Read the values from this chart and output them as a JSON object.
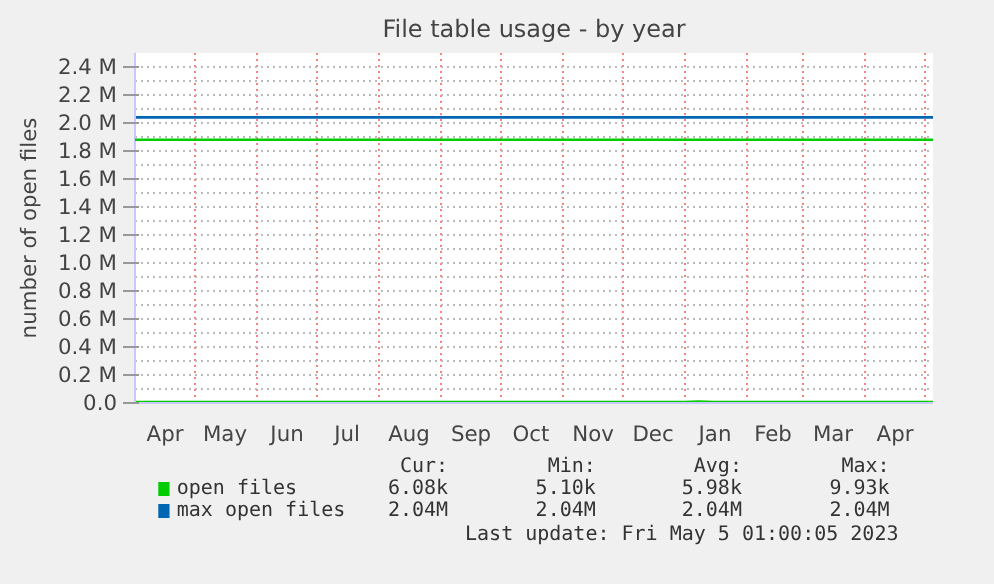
{
  "chart_data": {
    "type": "line",
    "title": "File table usage - by year",
    "ylabel": "number of open files",
    "x": [
      "2022-04-01",
      "2022-07-01",
      "2022-10-01",
      "2023-01-01",
      "2023-01-08",
      "2023-01-15",
      "2023-05-05"
    ],
    "series": [
      {
        "name": "open files",
        "color": "#00cc00",
        "values": [
          6000,
          6000,
          6000,
          6000,
          10000,
          6000,
          6000
        ]
      },
      {
        "name": "max open files",
        "color": "#0066b3",
        "values": [
          2040000,
          2040000,
          2040000,
          2040000,
          2040000,
          2040000,
          2040000
        ]
      }
    ],
    "ref_lines": [
      {
        "axis": "y",
        "value": 1880000,
        "label": null,
        "color": "#00cc00"
      }
    ],
    "xlim": [
      "2022-04-01",
      "2023-05-05"
    ],
    "xticks": [
      {
        "value": "2022-04-16",
        "label": "Apr"
      },
      {
        "value": "2022-05-01",
        "label": null
      },
      {
        "value": "2022-05-16",
        "label": "May"
      },
      {
        "value": "2022-06-01",
        "label": null
      },
      {
        "value": "2022-06-16",
        "label": "Jun"
      },
      {
        "value": "2022-07-01",
        "label": null
      },
      {
        "value": "2022-07-16",
        "label": "Jul"
      },
      {
        "value": "2022-08-01",
        "label": null
      },
      {
        "value": "2022-08-16",
        "label": "Aug"
      },
      {
        "value": "2022-09-01",
        "label": null
      },
      {
        "value": "2022-09-16",
        "label": "Sep"
      },
      {
        "value": "2022-10-01",
        "label": null
      },
      {
        "value": "2022-10-16",
        "label": "Oct"
      },
      {
        "value": "2022-11-01",
        "label": null
      },
      {
        "value": "2022-11-16",
        "label": "Nov"
      },
      {
        "value": "2022-12-01",
        "label": null
      },
      {
        "value": "2022-12-16",
        "label": "Dec"
      },
      {
        "value": "2023-01-01",
        "label": null
      },
      {
        "value": "2023-01-16",
        "label": "Jan"
      },
      {
        "value": "2023-02-01",
        "label": null
      },
      {
        "value": "2023-02-14",
        "label": "Feb"
      },
      {
        "value": "2023-03-01",
        "label": null
      },
      {
        "value": "2023-03-16",
        "label": "Mar"
      },
      {
        "value": "2023-04-01",
        "label": null
      },
      {
        "value": "2023-04-16",
        "label": "Apr"
      },
      {
        "value": "2023-05-01",
        "label": null
      }
    ],
    "ylim": [
      0,
      2500000
    ],
    "yticks": [
      {
        "value": 0,
        "label": "0.0"
      },
      {
        "value": 200000,
        "label": "0.2 M"
      },
      {
        "value": 400000,
        "label": "0.4 M"
      },
      {
        "value": 600000,
        "label": "0.6 M"
      },
      {
        "value": 800000,
        "label": "0.8 M"
      },
      {
        "value": 1000000,
        "label": "1.0 M"
      },
      {
        "value": 1200000,
        "label": "1.2 M"
      },
      {
        "value": 1400000,
        "label": "1.4 M"
      },
      {
        "value": 1600000,
        "label": "1.6 M"
      },
      {
        "value": 1800000,
        "label": "1.8 M"
      },
      {
        "value": 2000000,
        "label": "2.0 M"
      },
      {
        "value": 2200000,
        "label": "2.2 M"
      },
      {
        "value": 2400000,
        "label": "2.4 M"
      }
    ],
    "grid": true,
    "legend": "bottom",
    "marker": "none",
    "line_style": "solid",
    "annotations": [
      "Cur:",
      "Min:",
      "Avg:",
      "Max:",
      "6.08k",
      "5.10k",
      "5.98k",
      "9.93k",
      "2.04M",
      "2.04M",
      "2.04M",
      "2.04M",
      "Last update: Fri May  5 01:00:05 2023"
    ]
  }
}
